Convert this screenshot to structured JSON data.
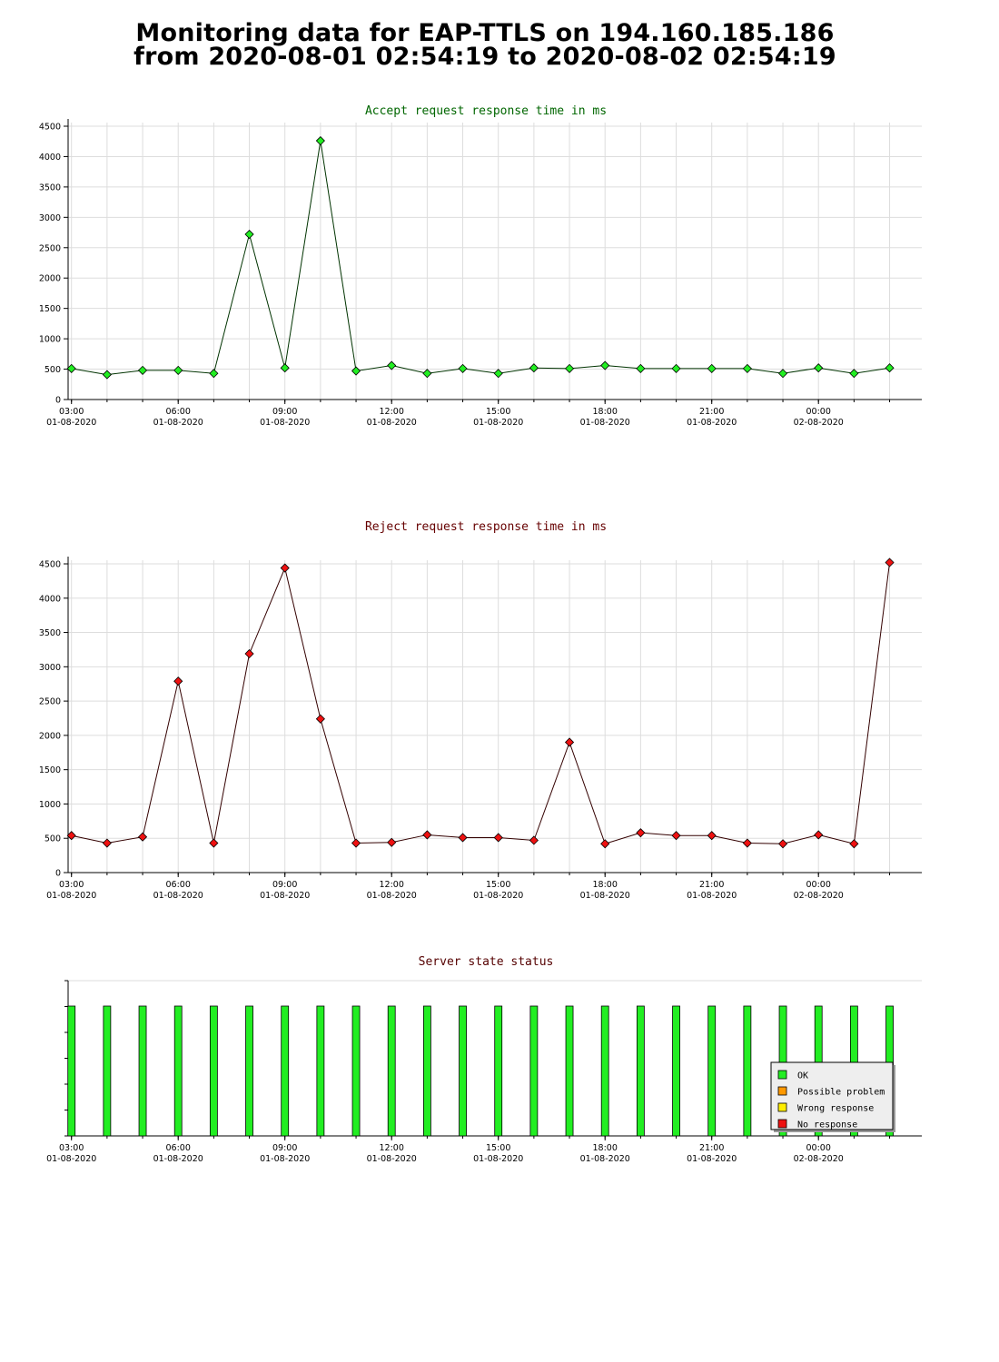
{
  "page": {
    "title_line1": "Monitoring data for EAP-TTLS on 194.160.185.186",
    "title_line2": "from 2020-08-01 02:54:19 to 2020-08-02 02:54:19"
  },
  "colors": {
    "accept_line": "#003300",
    "accept_marker": "#22ee22",
    "accept_title": "#006600",
    "reject_line": "#330000",
    "reject_marker": "#ee1111",
    "reject_title": "#660000",
    "status_title": "#550000",
    "grid": "#dddddd",
    "ok": "#22ee22",
    "possible_problem": "#ff9900",
    "wrong_response": "#ffee00",
    "no_response": "#ee1111"
  },
  "x_ticks": [
    {
      "time": "03:00",
      "date": "01-08-2020"
    },
    {
      "time": "06:00",
      "date": "01-08-2020"
    },
    {
      "time": "09:00",
      "date": "01-08-2020"
    },
    {
      "time": "12:00",
      "date": "01-08-2020"
    },
    {
      "time": "15:00",
      "date": "01-08-2020"
    },
    {
      "time": "18:00",
      "date": "01-08-2020"
    },
    {
      "time": "21:00",
      "date": "01-08-2020"
    },
    {
      "time": "00:00",
      "date": "02-08-2020"
    }
  ],
  "chart_data": [
    {
      "type": "line",
      "title": "Accept request response time in ms",
      "xlim": [
        "2020-08-01 02:54:19",
        "2020-08-02 02:54:19"
      ],
      "ylim": [
        0,
        4500
      ],
      "yticks": [
        0,
        500,
        1000,
        1500,
        2000,
        2500,
        3000,
        3500,
        4000,
        4500
      ],
      "grid": true,
      "x": [
        "2020-08-01 03:00",
        "2020-08-01 04:00",
        "2020-08-01 05:00",
        "2020-08-01 06:00",
        "2020-08-01 07:00",
        "2020-08-01 08:00",
        "2020-08-01 09:00",
        "2020-08-01 10:00",
        "2020-08-01 11:00",
        "2020-08-01 12:00",
        "2020-08-01 13:00",
        "2020-08-01 14:00",
        "2020-08-01 15:00",
        "2020-08-01 16:00",
        "2020-08-01 17:00",
        "2020-08-01 18:00",
        "2020-08-01 19:00",
        "2020-08-01 20:00",
        "2020-08-01 21:00",
        "2020-08-01 22:00",
        "2020-08-01 23:00",
        "2020-08-02 00:00",
        "2020-08-02 01:00",
        "2020-08-02 02:00"
      ],
      "values": [
        510,
        410,
        480,
        480,
        430,
        2720,
        520,
        4260,
        470,
        560,
        430,
        510,
        430,
        520,
        510,
        560,
        510,
        510,
        510,
        510,
        430,
        520,
        430,
        520
      ]
    },
    {
      "type": "line",
      "title": "Reject request response time in ms",
      "xlim": [
        "2020-08-01 02:54:19",
        "2020-08-02 02:54:19"
      ],
      "ylim": [
        0,
        4500
      ],
      "yticks": [
        0,
        500,
        1000,
        1500,
        2000,
        2500,
        3000,
        3500,
        4000,
        4500
      ],
      "grid": true,
      "x": [
        "2020-08-01 03:00",
        "2020-08-01 04:00",
        "2020-08-01 05:00",
        "2020-08-01 06:00",
        "2020-08-01 07:00",
        "2020-08-01 08:00",
        "2020-08-01 09:00",
        "2020-08-01 10:00",
        "2020-08-01 11:00",
        "2020-08-01 12:00",
        "2020-08-01 13:00",
        "2020-08-01 14:00",
        "2020-08-01 15:00",
        "2020-08-01 16:00",
        "2020-08-01 17:00",
        "2020-08-01 18:00",
        "2020-08-01 19:00",
        "2020-08-01 20:00",
        "2020-08-01 21:00",
        "2020-08-01 22:00",
        "2020-08-01 23:00",
        "2020-08-02 00:00",
        "2020-08-02 01:00",
        "2020-08-02 02:00"
      ],
      "values": [
        540,
        430,
        520,
        2790,
        430,
        3190,
        4440,
        2240,
        430,
        440,
        550,
        510,
        510,
        470,
        1900,
        420,
        580,
        540,
        540,
        430,
        420,
        550,
        420,
        4520
      ]
    },
    {
      "type": "bar",
      "title": "Server state status",
      "xlim": [
        "2020-08-01 02:54:19",
        "2020-08-02 02:54:19"
      ],
      "grid": false,
      "legend_position": "bottom-right",
      "legend": [
        "OK",
        "Possible problem",
        "Wrong response",
        "No response"
      ],
      "x": [
        "2020-08-01 03:00",
        "2020-08-01 04:00",
        "2020-08-01 05:00",
        "2020-08-01 06:00",
        "2020-08-01 07:00",
        "2020-08-01 08:00",
        "2020-08-01 09:00",
        "2020-08-01 10:00",
        "2020-08-01 11:00",
        "2020-08-01 12:00",
        "2020-08-01 13:00",
        "2020-08-01 14:00",
        "2020-08-01 15:00",
        "2020-08-01 16:00",
        "2020-08-01 17:00",
        "2020-08-01 18:00",
        "2020-08-01 19:00",
        "2020-08-01 20:00",
        "2020-08-01 21:00",
        "2020-08-01 22:00",
        "2020-08-01 23:00",
        "2020-08-02 00:00",
        "2020-08-02 01:00",
        "2020-08-02 02:00"
      ],
      "states": [
        "OK",
        "OK",
        "OK",
        "OK",
        "OK",
        "OK",
        "OK",
        "OK",
        "OK",
        "OK",
        "OK",
        "OK",
        "OK",
        "OK",
        "OK",
        "OK",
        "OK",
        "OK",
        "OK",
        "OK",
        "OK",
        "OK",
        "OK",
        "OK"
      ]
    }
  ]
}
